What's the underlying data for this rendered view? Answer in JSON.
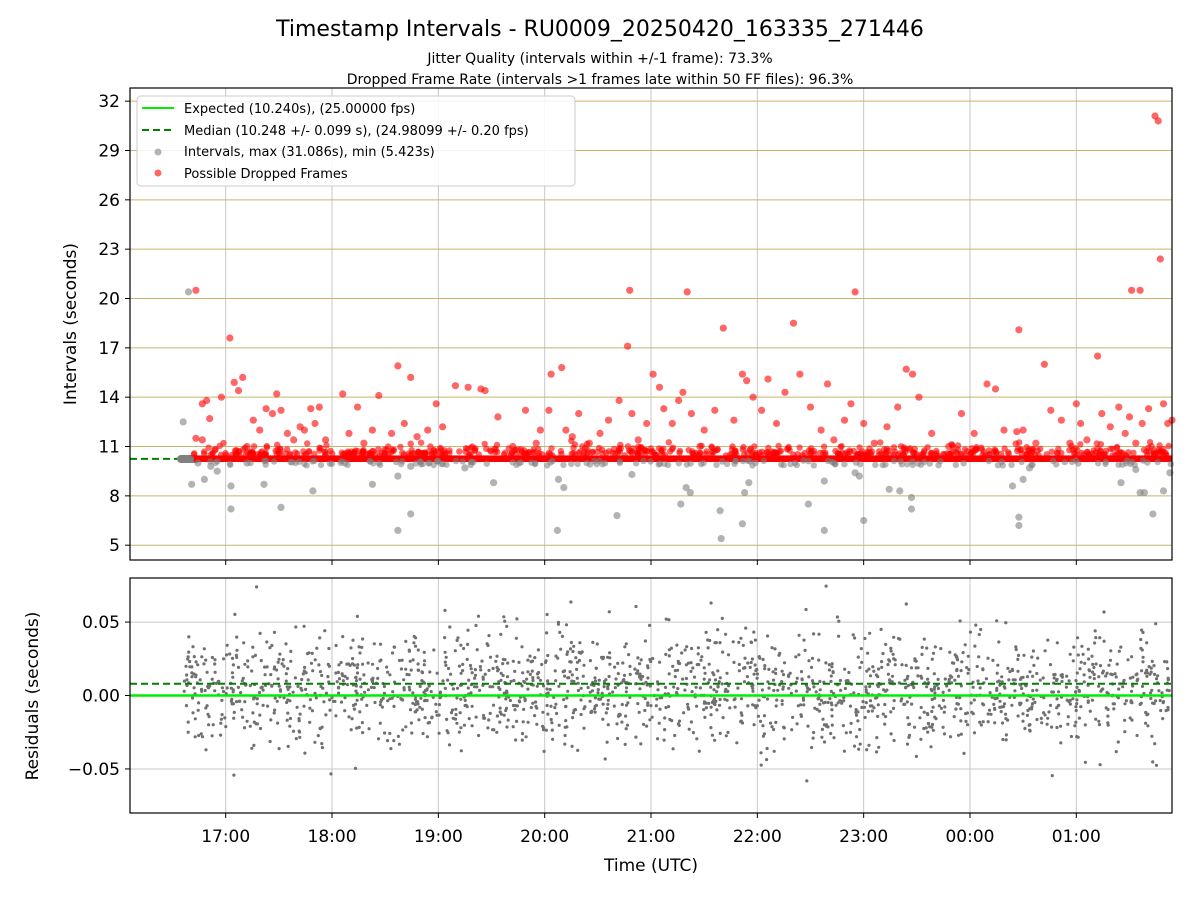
{
  "figure": {
    "title": "Timestamp Intervals - RU0009_20250420_163335_271446",
    "subtitle_1": "Jitter Quality (intervals within +/-1 frame): 73.3%",
    "subtitle_2": "Dropped Frame Rate (intervals >1 frames late within 50 FF files): 96.3%"
  },
  "colors": {
    "expected": "#00ee00",
    "median": "#008000",
    "interval_points": "#808080",
    "dropped_points": "#ff0000",
    "hgrid_top": "#c8b46e",
    "vgrid": "#c8c8c8",
    "residual_points": "#707070"
  },
  "chart_data": [
    {
      "type": "scatter",
      "panel": "intervals",
      "ylabel": "Intervals (seconds)",
      "ylim": [
        4.1,
        32.8
      ],
      "yticks": [
        5,
        8,
        11,
        14,
        17,
        20,
        23,
        26,
        29,
        32
      ],
      "ytick_labels": [
        "5",
        "8",
        "11",
        "14",
        "17",
        "20",
        "23",
        "26",
        "29",
        "32"
      ],
      "xlim_hours": [
        16.1,
        25.9
      ],
      "xticks": [
        17,
        18,
        19,
        20,
        21,
        22,
        23,
        24,
        25
      ],
      "grid": "both",
      "legend_placement": "upper-left",
      "legend": [
        {
          "label": "Expected (10.240s), (25.00000 fps)",
          "marker": "line-solid",
          "color": "#00ee00"
        },
        {
          "label": "Median (10.248 +/- 0.099 s), (24.98099 +/- 0.20 fps)",
          "marker": "line-dashed",
          "color": "#008000"
        },
        {
          "label": "Intervals, max (31.086s), min (5.423s)",
          "marker": "dot",
          "color": "#808080"
        },
        {
          "label": "Possible Dropped Frames",
          "marker": "dot",
          "color": "#ff0000"
        }
      ],
      "expected_value": 10.24,
      "median_value": 10.248,
      "time_range_utc": {
        "start": "16:36",
        "end": "01:55"
      },
      "series": [
        {
          "name": "Intervals",
          "points": [
            [
              16.6,
              12.5
            ],
            [
              16.65,
              20.4
            ],
            [
              16.68,
              8.7
            ],
            [
              16.74,
              10.0
            ],
            [
              16.8,
              9.0
            ],
            [
              16.86,
              9.8
            ],
            [
              16.92,
              9.5
            ],
            [
              17.05,
              8.6
            ],
            [
              17.05,
              7.2
            ],
            [
              17.2,
              10.0
            ],
            [
              17.36,
              8.7
            ],
            [
              17.52,
              7.3
            ],
            [
              17.82,
              8.3
            ],
            [
              18.12,
              10.0
            ],
            [
              18.38,
              8.7
            ],
            [
              18.62,
              5.9
            ],
            [
              18.62,
              9.2
            ],
            [
              18.74,
              6.9
            ],
            [
              18.74,
              9.8
            ],
            [
              19.25,
              9.7
            ],
            [
              19.52,
              8.8
            ],
            [
              20.12,
              5.9
            ],
            [
              20.13,
              9.0
            ],
            [
              20.18,
              8.5
            ],
            [
              20.68,
              6.8
            ],
            [
              20.82,
              9.3
            ],
            [
              21.28,
              7.5
            ],
            [
              21.33,
              8.5
            ],
            [
              21.37,
              8.2
            ],
            [
              21.65,
              7.1
            ],
            [
              21.66,
              5.4
            ],
            [
              21.86,
              6.3
            ],
            [
              21.88,
              8.2
            ],
            [
              21.92,
              8.8
            ],
            [
              22.48,
              7.5
            ],
            [
              22.63,
              5.9
            ],
            [
              22.63,
              8.9
            ],
            [
              22.92,
              9.4
            ],
            [
              22.96,
              9.2
            ],
            [
              23.0,
              6.5
            ],
            [
              23.24,
              8.4
            ],
            [
              23.34,
              8.3
            ],
            [
              23.45,
              7.2
            ],
            [
              23.45,
              7.9
            ],
            [
              24.46,
              6.2
            ],
            [
              24.46,
              6.7
            ],
            [
              24.4,
              8.6
            ],
            [
              24.5,
              9.0
            ],
            [
              24.56,
              9.7
            ],
            [
              25.42,
              8.8
            ],
            [
              25.56,
              9.6
            ],
            [
              25.6,
              8.2
            ],
            [
              25.64,
              8.2
            ],
            [
              25.72,
              6.9
            ],
            [
              25.82,
              8.3
            ],
            [
              25.88,
              9.4
            ]
          ]
        },
        {
          "name": "Possible Dropped Frames",
          "points": [
            [
              16.72,
              20.5
            ],
            [
              16.72,
              11.5
            ],
            [
              16.78,
              11.4
            ],
            [
              16.78,
              13.6
            ],
            [
              16.82,
              13.8
            ],
            [
              16.85,
              12.7
            ],
            [
              16.9,
              10.8
            ],
            [
              16.96,
              14.0
            ],
            [
              17.04,
              17.6
            ],
            [
              17.08,
              14.9
            ],
            [
              17.12,
              14.4
            ],
            [
              17.16,
              15.2
            ],
            [
              17.2,
              11.0
            ],
            [
              17.26,
              12.6
            ],
            [
              17.32,
              12.0
            ],
            [
              17.38,
              13.3
            ],
            [
              17.44,
              13.0
            ],
            [
              17.48,
              14.2
            ],
            [
              17.52,
              13.2
            ],
            [
              17.58,
              11.8
            ],
            [
              17.64,
              11.4
            ],
            [
              17.7,
              12.2
            ],
            [
              17.74,
              12.0
            ],
            [
              17.8,
              13.3
            ],
            [
              17.84,
              12.4
            ],
            [
              17.88,
              13.4
            ],
            [
              17.94,
              11.4
            ],
            [
              18.1,
              14.2
            ],
            [
              18.16,
              11.8
            ],
            [
              18.24,
              13.4
            ],
            [
              18.3,
              11.2
            ],
            [
              18.38,
              12.0
            ],
            [
              18.44,
              14.1
            ],
            [
              18.56,
              11.8
            ],
            [
              18.62,
              15.9
            ],
            [
              18.68,
              12.4
            ],
            [
              18.74,
              15.2
            ],
            [
              18.8,
              11.6
            ],
            [
              18.9,
              12.0
            ],
            [
              18.98,
              13.6
            ],
            [
              19.04,
              12.2
            ],
            [
              19.16,
              14.7
            ],
            [
              19.28,
              14.6
            ],
            [
              19.4,
              14.5
            ],
            [
              19.44,
              14.4
            ],
            [
              19.56,
              12.8
            ],
            [
              19.7,
              11.0
            ],
            [
              19.82,
              13.2
            ],
            [
              19.92,
              11.2
            ],
            [
              19.96,
              12.0
            ],
            [
              20.04,
              13.2
            ],
            [
              20.06,
              15.4
            ],
            [
              20.16,
              15.8
            ],
            [
              20.2,
              12.0
            ],
            [
              20.26,
              11.6
            ],
            [
              20.32,
              13.0
            ],
            [
              20.42,
              11.2
            ],
            [
              20.52,
              11.8
            ],
            [
              20.6,
              12.6
            ],
            [
              20.7,
              13.8
            ],
            [
              20.78,
              17.1
            ],
            [
              20.8,
              20.5
            ],
            [
              20.82,
              13.0
            ],
            [
              20.88,
              11.4
            ],
            [
              20.96,
              12.4
            ],
            [
              21.02,
              15.4
            ],
            [
              21.08,
              14.6
            ],
            [
              21.12,
              13.3
            ],
            [
              21.2,
              12.4
            ],
            [
              21.26,
              13.8
            ],
            [
              21.3,
              14.3
            ],
            [
              21.34,
              20.4
            ],
            [
              21.38,
              13.0
            ],
            [
              21.46,
              11.0
            ],
            [
              21.5,
              12.0
            ],
            [
              21.6,
              13.2
            ],
            [
              21.68,
              18.2
            ],
            [
              21.78,
              12.6
            ],
            [
              21.86,
              15.4
            ],
            [
              21.9,
              15.0
            ],
            [
              21.96,
              14.0
            ],
            [
              22.04,
              13.2
            ],
            [
              22.1,
              15.1
            ],
            [
              22.18,
              12.4
            ],
            [
              22.26,
              14.3
            ],
            [
              22.34,
              18.5
            ],
            [
              22.4,
              15.4
            ],
            [
              22.5,
              13.4
            ],
            [
              22.6,
              12.0
            ],
            [
              22.66,
              14.8
            ],
            [
              22.72,
              11.4
            ],
            [
              22.82,
              12.6
            ],
            [
              22.88,
              13.6
            ],
            [
              22.92,
              20.4
            ],
            [
              23.0,
              12.4
            ],
            [
              23.1,
              11.2
            ],
            [
              23.22,
              12.2
            ],
            [
              23.32,
              13.4
            ],
            [
              23.4,
              15.7
            ],
            [
              23.46,
              15.4
            ],
            [
              23.52,
              14.0
            ],
            [
              23.64,
              11.8
            ],
            [
              23.8,
              11.0
            ],
            [
              23.92,
              13.0
            ],
            [
              24.04,
              11.8
            ],
            [
              24.16,
              14.8
            ],
            [
              24.24,
              14.5
            ],
            [
              24.32,
              12.0
            ],
            [
              24.44,
              11.9
            ],
            [
              24.46,
              18.1
            ],
            [
              24.5,
              12.0
            ],
            [
              24.62,
              11.2
            ],
            [
              24.7,
              16.0
            ],
            [
              24.76,
              13.2
            ],
            [
              24.86,
              12.6
            ],
            [
              24.94,
              11.2
            ],
            [
              25.0,
              13.6
            ],
            [
              25.04,
              12.4
            ],
            [
              25.1,
              11.4
            ],
            [
              25.2,
              16.5
            ],
            [
              25.24,
              13.0
            ],
            [
              25.32,
              12.2
            ],
            [
              25.4,
              13.4
            ],
            [
              25.46,
              11.8
            ],
            [
              25.52,
              20.5
            ],
            [
              25.6,
              20.5
            ],
            [
              25.62,
              12.4
            ],
            [
              25.68,
              13.3
            ],
            [
              25.74,
              31.1
            ],
            [
              25.77,
              30.8
            ],
            [
              25.79,
              22.4
            ],
            [
              25.82,
              13.6
            ],
            [
              25.86,
              12.4
            ],
            [
              25.9,
              12.6
            ],
            [
              25.5,
              12.8
            ],
            [
              25.56,
              11.2
            ]
          ]
        }
      ]
    },
    {
      "type": "scatter",
      "panel": "residuals",
      "xlabel": "Time (UTC)",
      "ylabel": "Residuals (seconds)",
      "ylim": [
        -0.08,
        0.08
      ],
      "yticks": [
        -0.05,
        0.0,
        0.05
      ],
      "ytick_labels": [
        "−0.05",
        "0.00",
        "0.05"
      ],
      "xlim_hours": [
        16.1,
        25.9
      ],
      "xticks": [
        17,
        18,
        19,
        20,
        21,
        22,
        23,
        24,
        25
      ],
      "xtick_labels": [
        "17:00",
        "18:00",
        "19:00",
        "20:00",
        "21:00",
        "22:00",
        "23:00",
        "00:00",
        "01:00"
      ],
      "grid": "both",
      "expected_residual": 0.0,
      "median_residual": 0.008,
      "series": [
        {
          "name": "Residuals",
          "distribution": {
            "count": 1900,
            "mean": 0.005,
            "std": 0.02,
            "x_start": 16.6,
            "x_end": 25.9
          }
        }
      ]
    }
  ]
}
